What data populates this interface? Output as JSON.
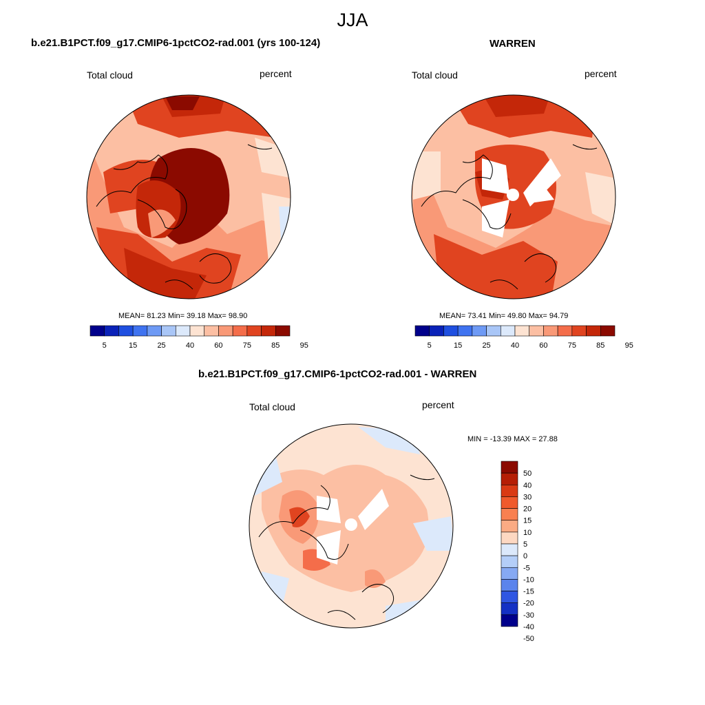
{
  "title": "JJA",
  "panels": [
    {
      "title": "b.e21.B1PCT.f09_g17.CMIP6-1pctCO2-rad.001 (yrs 100-124)",
      "variable": "Total cloud",
      "units": "percent",
      "stats": "MEAN=  81.23  Min=  39.18  Max=  98.90",
      "colorbar_labels": [
        "5",
        "15",
        "25",
        "40",
        "60",
        "75",
        "85",
        "95"
      ]
    },
    {
      "title": "WARREN",
      "variable": "Total cloud",
      "units": "percent",
      "stats": "MEAN=  73.41  Min=  49.80  Max=  94.79",
      "colorbar_labels": [
        "5",
        "15",
        "25",
        "40",
        "60",
        "75",
        "85",
        "95"
      ]
    },
    {
      "title": "b.e21.B1PCT.f09_g17.CMIP6-1pctCO2-rad.001 - WARREN",
      "variable": "Total cloud",
      "units": "percent",
      "stats": "MIN = -13.39 MAX =  27.88",
      "colorbar_labels": [
        "50",
        "40",
        "30",
        "20",
        "15",
        "10",
        "5",
        "0",
        "-5",
        "-10",
        "-15",
        "-20",
        "-30",
        "-40",
        "-50"
      ]
    }
  ],
  "colors": {
    "abs_scale": [
      "#00008b",
      "#0a22b8",
      "#1f4fe0",
      "#3f73f0",
      "#6e9af5",
      "#a9c6f7",
      "#dce9fb",
      "#fde3d2",
      "#fcbfa3",
      "#f99977",
      "#f46d4a",
      "#e04420",
      "#c42709",
      "#8b0a00"
    ],
    "diff_scale": [
      "#8b0a00",
      "#b51e05",
      "#d93a14",
      "#f05a2c",
      "#f88050",
      "#fbab84",
      "#fdd8c2",
      "#dce9fb",
      "#b4cef8",
      "#86a9f3",
      "#5b84ec",
      "#2f56e2",
      "#1431c4",
      "#00008b"
    ]
  }
}
